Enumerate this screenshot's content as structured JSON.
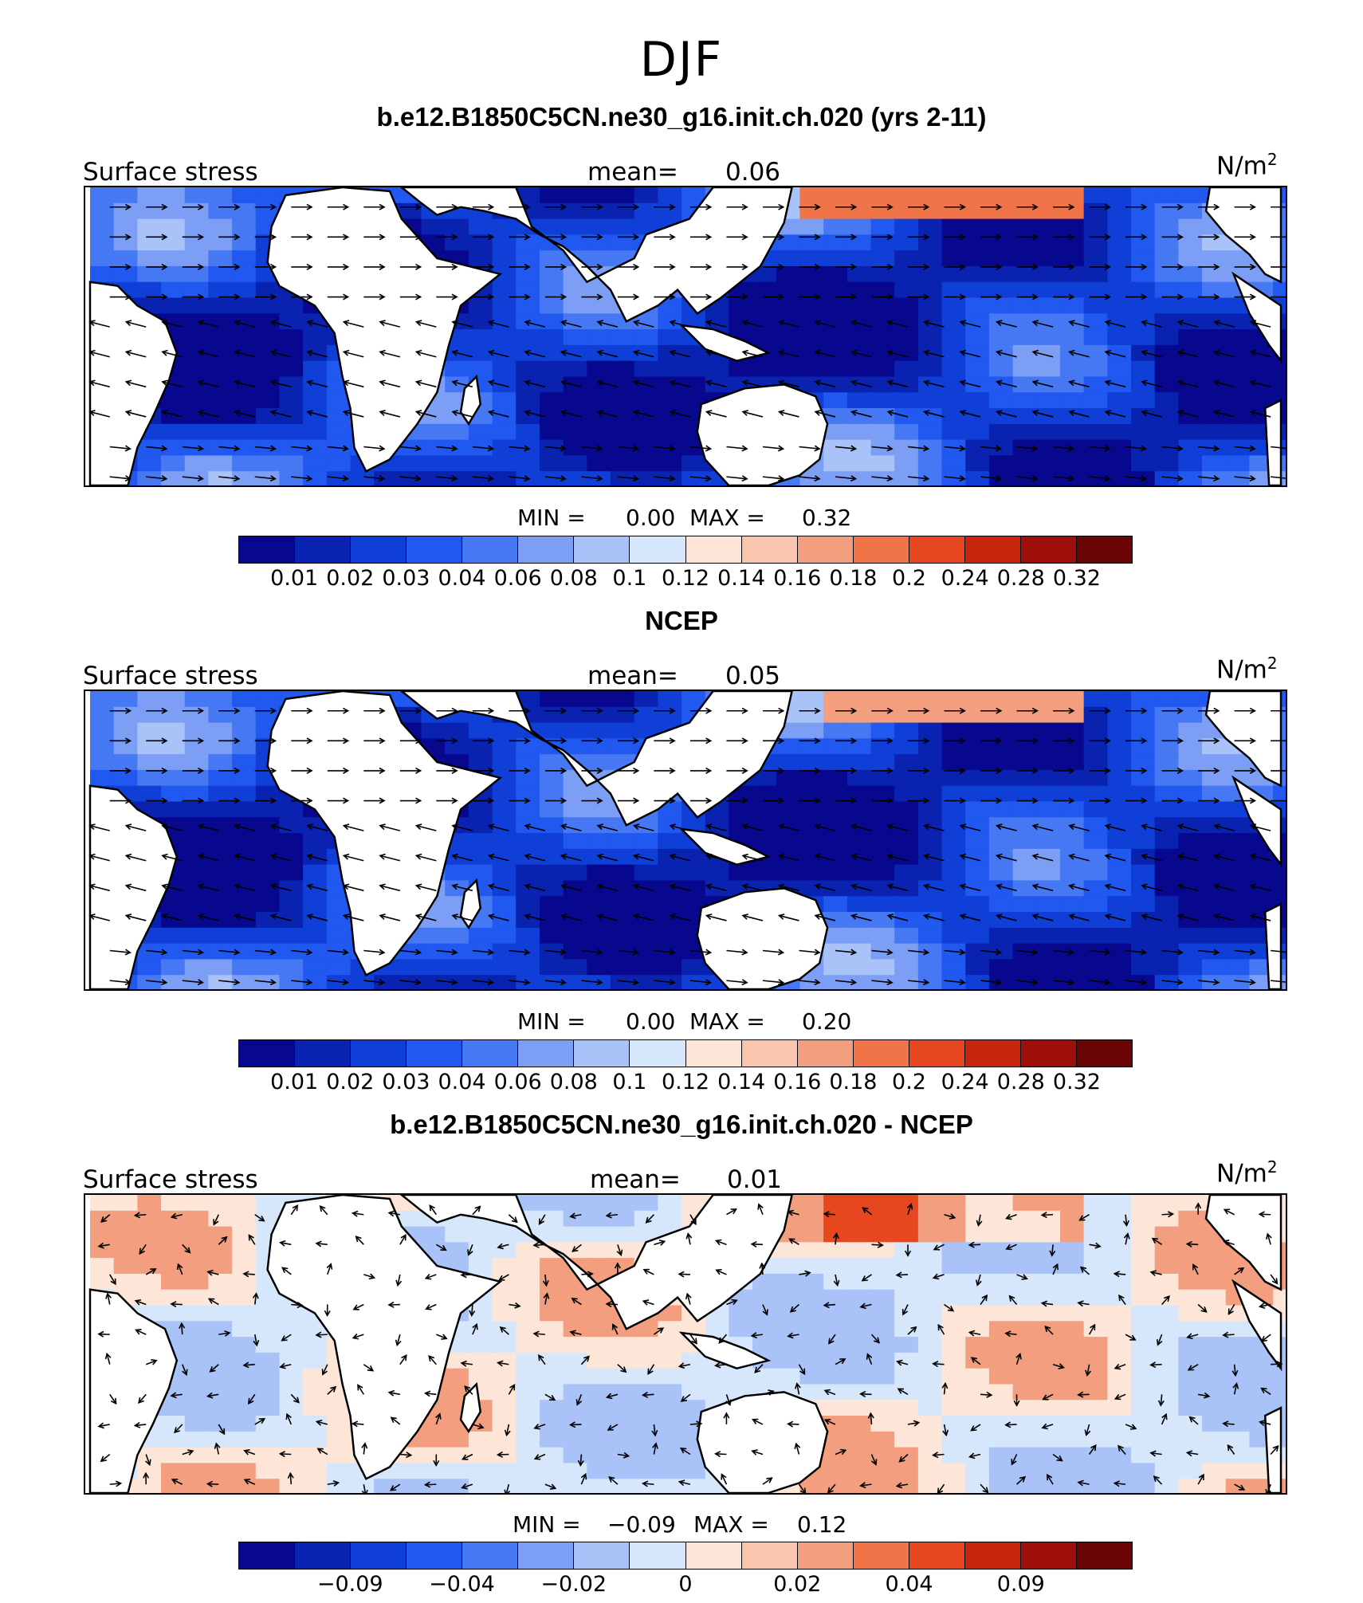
{
  "title": "DJF",
  "colorbar_colors": [
    "#08088f",
    "#0a22b0",
    "#0f3fd6",
    "#2158ef",
    "#4578f2",
    "#7c9ff5",
    "#a9c2f7",
    "#d6e6fb",
    "#fde6d8",
    "#f9c6ad",
    "#f39e7e",
    "#f07447",
    "#e7471e",
    "#c8250f",
    "#9e0f0a",
    "#6b0505"
  ],
  "panels": [
    {
      "title": "b.e12.B1850C5CN.ne30_g16.init.ch.020 (yrs 2-11)",
      "left_label": "Surface stress",
      "mean_label": "mean=",
      "mean_value": "0.06",
      "units": "N/m",
      "units_sup": "2",
      "min_label": "MIN =",
      "min_value": "0.00",
      "max_label": "MAX =",
      "max_value": "0.32",
      "colorbar_ticks": [
        "0.01",
        "0.02",
        "0.03",
        "0.04",
        "0.06",
        "0.08",
        "0.1",
        "0.12",
        "0.14",
        "0.16",
        "0.18",
        "0.2",
        "0.24",
        "0.28",
        "0.32"
      ]
    },
    {
      "title": "NCEP",
      "left_label": "Surface stress",
      "mean_label": "mean=",
      "mean_value": "0.05",
      "units": "N/m",
      "units_sup": "2",
      "min_label": "MIN =",
      "min_value": "0.00",
      "max_label": "MAX =",
      "max_value": "0.20",
      "colorbar_ticks": [
        "0.01",
        "0.02",
        "0.03",
        "0.04",
        "0.06",
        "0.08",
        "0.1",
        "0.12",
        "0.14",
        "0.16",
        "0.18",
        "0.2",
        "0.24",
        "0.28",
        "0.32"
      ]
    },
    {
      "title": "b.e12.B1850C5CN.ne30_g16.init.ch.020 - NCEP",
      "left_label": "Surface stress",
      "mean_label": "mean=",
      "mean_value": "0.01",
      "units": "N/m",
      "units_sup": "2",
      "min_label": "MIN =",
      "min_value": "−0.09",
      "max_label": "MAX =",
      "max_value": "0.12",
      "colorbar_ticks": [
        "−0.09",
        "−0.04",
        "−0.02",
        "0",
        "0.02",
        "0.04",
        "0.09"
      ]
    }
  ]
}
